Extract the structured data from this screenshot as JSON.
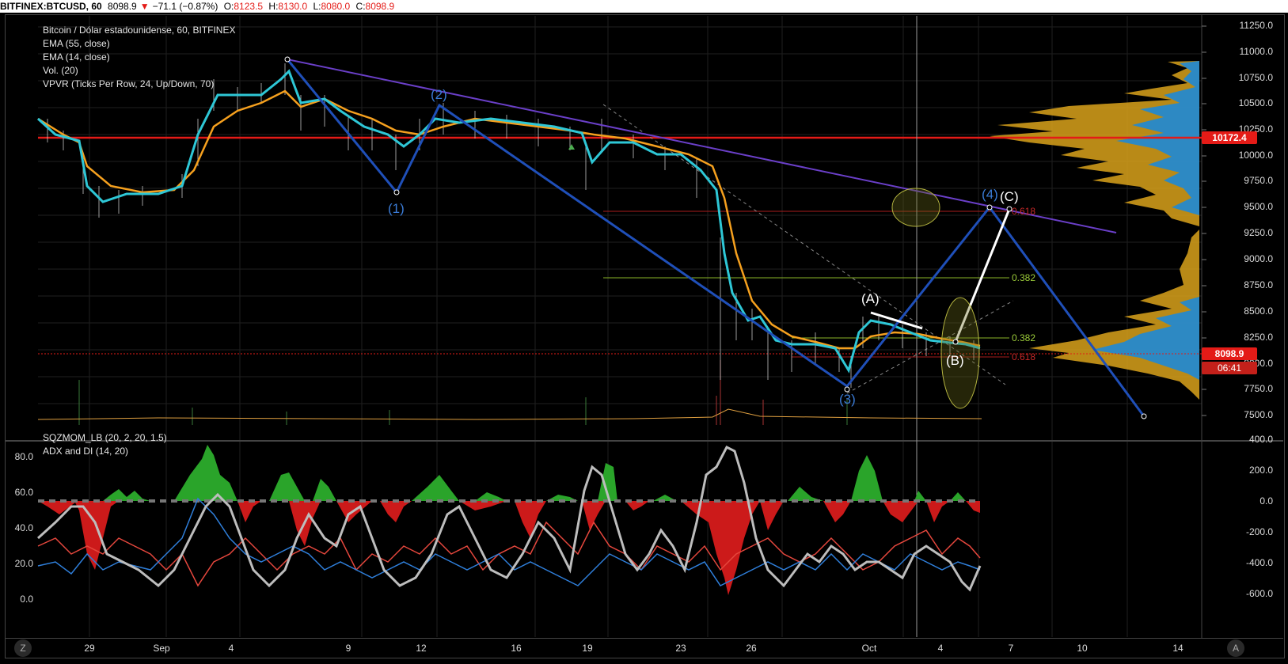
{
  "header": {
    "symbol": "BITFINEX:BTCUSD, 60",
    "last": "8098.9",
    "arrow": "▼",
    "change": "−71.1 (−0.87%)",
    "o_label": "O:",
    "o_val": "8123.5",
    "h_label": "H:",
    "h_val": "8130.0",
    "l_label": "L:",
    "l_val": "8080.0",
    "c_label": "C:",
    "c_val": "8098.9"
  },
  "legend": {
    "title": "Bitcoin / Dólar estadounidense, 60, BITFINEX",
    "ema55": "EMA (55, close)",
    "ema14": "EMA (14, close)",
    "vol": "Vol. (20)",
    "vpvr": "VPVR (Ticks Per Row, 24, Up/Down, 70)"
  },
  "lower_legend": {
    "sqz": "SQZMOM_LB (20, 2, 20, 1.5)",
    "adx": "ADX and DI (14, 20)"
  },
  "price_axis": [
    "11250.0",
    "11000.0",
    "10750.0",
    "10500.0",
    "10250.0",
    "10000.0",
    "9750.0",
    "9500.0",
    "9250.0",
    "9000.0",
    "8750.0",
    "8500.0",
    "8250.0",
    "8000.0",
    "7750.0",
    "7500.0"
  ],
  "price_tags": {
    "line": "10172.4",
    "last": "8098.9",
    "countdown": "06:41"
  },
  "mom_axis_right": [
    "400.0",
    "200.0",
    "0.0",
    "-200.0",
    "-400.0",
    "-600.0"
  ],
  "adx_axis_left": [
    "80.0",
    "60.0",
    "40.0",
    "20.0",
    "0.0"
  ],
  "x_axis": [
    "29",
    "Sep",
    "4",
    "9",
    "12",
    "16",
    "19",
    "23",
    "26",
    "Oct",
    "4",
    "7",
    "10",
    "14"
  ],
  "waves": {
    "w1": "(1)",
    "w2": "(2)",
    "w3": "(3)",
    "w4": "(4)",
    "wa": "(A)",
    "wb": "(B)",
    "wc": "(C)"
  },
  "fib": {
    "f618a": "0.618",
    "f382a": "0.382",
    "f382b": "0.382",
    "f618b": "0.618"
  },
  "corners": {
    "left": "Z",
    "right": "A"
  },
  "colors": {
    "ema14": "#2ec7d6",
    "ema55": "#f5a01e",
    "trend": "#1f4fb8",
    "red_line": "#e41b17",
    "vpvr_up": "#1e88d6",
    "vpvr_down": "#d9a21b",
    "adx": "#bdbdbd",
    "di_plus": "#2f7fdb",
    "di_minus": "#e5473d"
  }
}
